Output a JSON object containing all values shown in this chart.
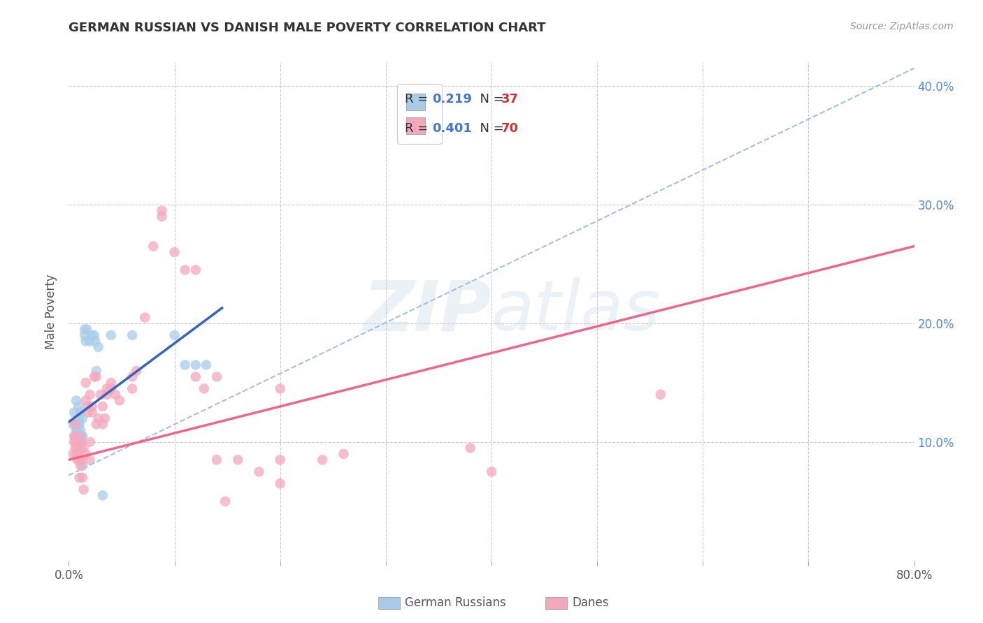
{
  "title": "GERMAN RUSSIAN VS DANISH MALE POVERTY CORRELATION CHART",
  "source": "Source: ZipAtlas.com",
  "ylabel": "Male Poverty",
  "xlim": [
    0,
    0.8
  ],
  "ylim": [
    0,
    0.42
  ],
  "ytick_right_labels": [
    "10.0%",
    "20.0%",
    "30.0%",
    "40.0%"
  ],
  "blue_color": "#a8cce8",
  "pink_color": "#f4a8bc",
  "blue_line_color": "#3366bb",
  "pink_line_color": "#ee6688",
  "blue_dashed_color": "#99bbdd",
  "blue_scatter": [
    [
      0.004,
      0.115
    ],
    [
      0.005,
      0.125
    ],
    [
      0.006,
      0.105
    ],
    [
      0.006,
      0.115
    ],
    [
      0.007,
      0.135
    ],
    [
      0.007,
      0.11
    ],
    [
      0.008,
      0.11
    ],
    [
      0.008,
      0.105
    ],
    [
      0.009,
      0.115
    ],
    [
      0.009,
      0.13
    ],
    [
      0.009,
      0.1
    ],
    [
      0.01,
      0.12
    ],
    [
      0.01,
      0.115
    ],
    [
      0.011,
      0.125
    ],
    [
      0.011,
      0.11
    ],
    [
      0.012,
      0.105
    ],
    [
      0.012,
      0.1
    ],
    [
      0.013,
      0.12
    ],
    [
      0.013,
      0.105
    ],
    [
      0.013,
      0.08
    ],
    [
      0.015,
      0.195
    ],
    [
      0.015,
      0.19
    ],
    [
      0.016,
      0.185
    ],
    [
      0.017,
      0.195
    ],
    [
      0.02,
      0.185
    ],
    [
      0.022,
      0.19
    ],
    [
      0.024,
      0.19
    ],
    [
      0.025,
      0.185
    ],
    [
      0.026,
      0.16
    ],
    [
      0.028,
      0.18
    ],
    [
      0.032,
      0.055
    ],
    [
      0.04,
      0.19
    ],
    [
      0.06,
      0.19
    ],
    [
      0.1,
      0.19
    ],
    [
      0.11,
      0.165
    ],
    [
      0.12,
      0.165
    ],
    [
      0.13,
      0.165
    ]
  ],
  "pink_scatter": [
    [
      0.004,
      0.09
    ],
    [
      0.005,
      0.105
    ],
    [
      0.005,
      0.1
    ],
    [
      0.006,
      0.115
    ],
    [
      0.006,
      0.095
    ],
    [
      0.007,
      0.1
    ],
    [
      0.007,
      0.09
    ],
    [
      0.008,
      0.095
    ],
    [
      0.008,
      0.085
    ],
    [
      0.009,
      0.1
    ],
    [
      0.009,
      0.09
    ],
    [
      0.01,
      0.105
    ],
    [
      0.01,
      0.085
    ],
    [
      0.01,
      0.07
    ],
    [
      0.011,
      0.095
    ],
    [
      0.011,
      0.08
    ],
    [
      0.012,
      0.1
    ],
    [
      0.012,
      0.085
    ],
    [
      0.013,
      0.07
    ],
    [
      0.014,
      0.095
    ],
    [
      0.014,
      0.06
    ],
    [
      0.016,
      0.15
    ],
    [
      0.016,
      0.135
    ],
    [
      0.016,
      0.09
    ],
    [
      0.018,
      0.13
    ],
    [
      0.018,
      0.125
    ],
    [
      0.02,
      0.14
    ],
    [
      0.02,
      0.1
    ],
    [
      0.02,
      0.085
    ],
    [
      0.022,
      0.13
    ],
    [
      0.022,
      0.125
    ],
    [
      0.024,
      0.155
    ],
    [
      0.026,
      0.155
    ],
    [
      0.026,
      0.115
    ],
    [
      0.028,
      0.12
    ],
    [
      0.03,
      0.14
    ],
    [
      0.032,
      0.13
    ],
    [
      0.032,
      0.115
    ],
    [
      0.034,
      0.12
    ],
    [
      0.036,
      0.145
    ],
    [
      0.036,
      0.14
    ],
    [
      0.04,
      0.145
    ],
    [
      0.04,
      0.15
    ],
    [
      0.044,
      0.14
    ],
    [
      0.048,
      0.135
    ],
    [
      0.06,
      0.155
    ],
    [
      0.06,
      0.145
    ],
    [
      0.064,
      0.16
    ],
    [
      0.072,
      0.205
    ],
    [
      0.08,
      0.265
    ],
    [
      0.088,
      0.29
    ],
    [
      0.088,
      0.295
    ],
    [
      0.1,
      0.26
    ],
    [
      0.11,
      0.245
    ],
    [
      0.12,
      0.245
    ],
    [
      0.12,
      0.155
    ],
    [
      0.128,
      0.145
    ],
    [
      0.14,
      0.155
    ],
    [
      0.14,
      0.085
    ],
    [
      0.148,
      0.05
    ],
    [
      0.16,
      0.085
    ],
    [
      0.18,
      0.075
    ],
    [
      0.2,
      0.145
    ],
    [
      0.2,
      0.085
    ],
    [
      0.2,
      0.065
    ],
    [
      0.24,
      0.085
    ],
    [
      0.26,
      0.09
    ],
    [
      0.38,
      0.095
    ],
    [
      0.4,
      0.075
    ],
    [
      0.56,
      0.14
    ]
  ],
  "blue_trendline": [
    [
      0.0,
      0.117
    ],
    [
      0.145,
      0.213
    ]
  ],
  "blue_dashed_line": [
    [
      0.0,
      0.072
    ],
    [
      0.8,
      0.415
    ]
  ],
  "pink_trendline": [
    [
      0.0,
      0.085
    ],
    [
      0.8,
      0.265
    ]
  ],
  "watermark_zip": "ZIP",
  "watermark_atlas": "atlas",
  "background_color": "#ffffff",
  "grid_color": "#cccccc"
}
